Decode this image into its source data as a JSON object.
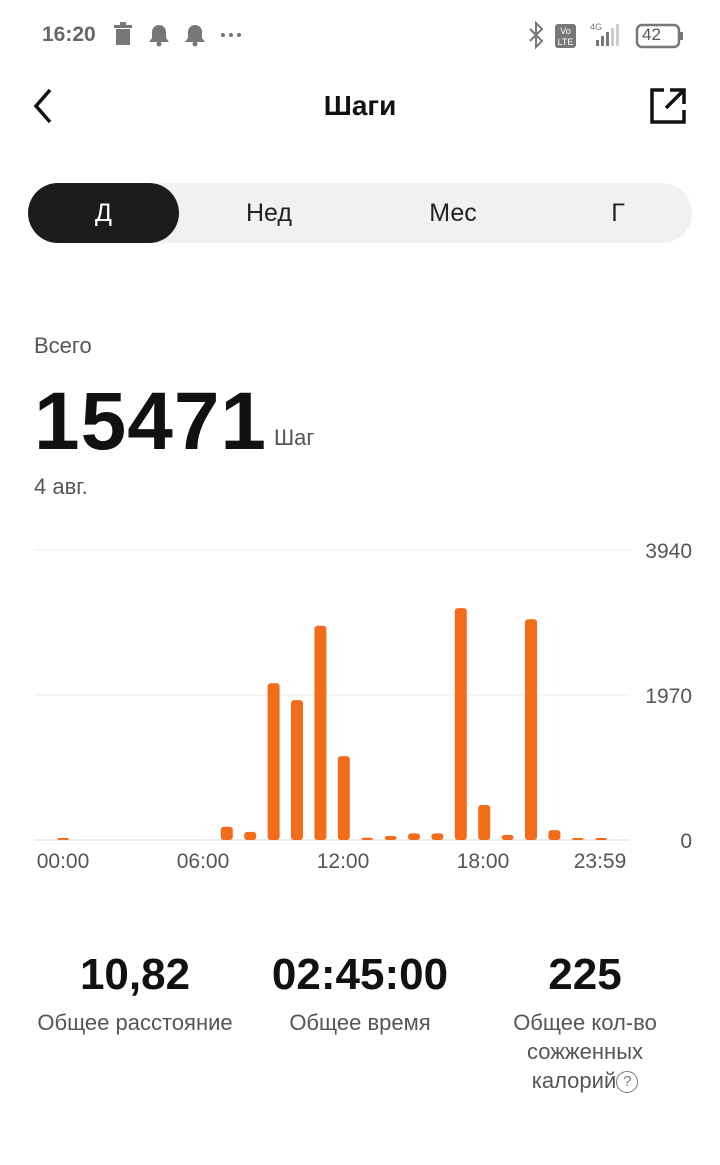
{
  "status_bar": {
    "time": "16:20",
    "icons": [
      "trash-icon",
      "bell-icon",
      "bell-icon",
      "more-icon",
      "bluetooth-icon",
      "volte-icon",
      "signal-4g-icon"
    ],
    "network": "4G",
    "battery": "42"
  },
  "header": {
    "title": "Шаги",
    "back_icon": "chevron-left-icon",
    "share_icon": "share-external-icon"
  },
  "tabs": [
    {
      "label": "Д",
      "active": true
    },
    {
      "label": "Нед"
    },
    {
      "label": "Мес"
    },
    {
      "label": "Г"
    }
  ],
  "summary": {
    "label": "Всего",
    "value": "15471",
    "unit": "Шаг",
    "date": "4 авг."
  },
  "accent": "#f36c1a",
  "chart_data": {
    "type": "bar",
    "x": [
      0,
      1,
      2,
      3,
      4,
      5,
      6,
      7,
      8,
      9,
      10,
      11,
      12,
      13,
      14,
      15,
      16,
      17,
      18,
      19,
      20,
      21,
      22,
      23
    ],
    "values": [
      20,
      0,
      0,
      0,
      0,
      0,
      0,
      180,
      110,
      2130,
      1900,
      2910,
      1140,
      30,
      55,
      90,
      90,
      3150,
      475,
      70,
      3000,
      135,
      15,
      15
    ],
    "x_tick_labels": [
      "00:00",
      "06:00",
      "12:00",
      "18:00",
      "23:59"
    ],
    "y_tick_labels": [
      "3940",
      "1970",
      "0"
    ],
    "ylim": [
      0,
      3940
    ],
    "grid": true
  },
  "stats": [
    {
      "value": "10,82",
      "label": "Общее расстояние"
    },
    {
      "value": "02:45:00",
      "label": "Общее время"
    },
    {
      "value": "225",
      "label": "Общее кол-во сожженных калорий",
      "help_icon": "question-circle-icon"
    }
  ]
}
